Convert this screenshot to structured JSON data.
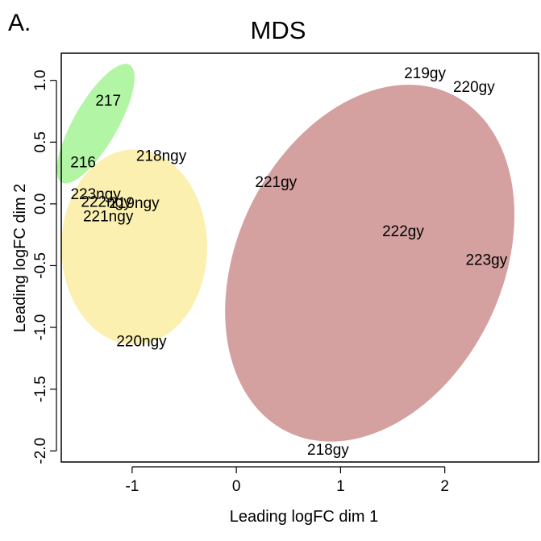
{
  "panel_letter": "A.",
  "chart_data": {
    "type": "scatter",
    "title": "MDS",
    "xlabel": "Leading logFC dim 1",
    "ylabel": "Leading logFC dim 2",
    "xlim": [
      -1.68,
      2.9
    ],
    "ylim": [
      -2.09,
      1.22
    ],
    "xticks": [
      -1,
      0,
      1,
      2
    ],
    "xtick_labels": [
      "-1",
      "0",
      "1",
      "2"
    ],
    "yticks": [
      -2.0,
      -1.5,
      -1.0,
      -0.5,
      0.0,
      0.5,
      1.0
    ],
    "ytick_labels": [
      "-2.0",
      "-1.5",
      "-1.0",
      "-0.5",
      "0.0",
      "0.5",
      "1.0"
    ],
    "grid": false,
    "points": [
      {
        "label": "217",
        "x": -1.23,
        "y": 0.83
      },
      {
        "label": "216",
        "x": -1.47,
        "y": 0.33
      },
      {
        "label": "218ngy",
        "x": -0.72,
        "y": 0.38
      },
      {
        "label": "223ngy",
        "x": -1.35,
        "y": 0.07
      },
      {
        "label": "222ngy",
        "x": -1.25,
        "y": 0.01
      },
      {
        "label": "219ngy",
        "x": -0.98,
        "y": 0.0
      },
      {
        "label": "221ngy",
        "x": -1.23,
        "y": -0.11
      },
      {
        "label": "220ngy",
        "x": -0.91,
        "y": -1.12
      },
      {
        "label": "221gy",
        "x": 0.38,
        "y": 0.17
      },
      {
        "label": "219gy",
        "x": 1.81,
        "y": 1.05
      },
      {
        "label": "220gy",
        "x": 2.28,
        "y": 0.94
      },
      {
        "label": "222gy",
        "x": 1.6,
        "y": -0.23
      },
      {
        "label": "223gy",
        "x": 2.4,
        "y": -0.46
      },
      {
        "label": "218gy",
        "x": 0.88,
        "y": -2.0
      }
    ],
    "groups": [
      {
        "name": "green",
        "color": "#b2f5a5",
        "cx": -1.35,
        "cy": 0.65,
        "rx": 0.21,
        "ry": 0.55,
        "angle": 30
      },
      {
        "name": "yellow",
        "color": "#fbf0b0",
        "cx": -0.98,
        "cy": -0.35,
        "rx": 0.7,
        "ry": 0.79,
        "angle": 0
      },
      {
        "name": "red",
        "color": "#d4a0a0",
        "cx": 1.28,
        "cy": -0.48,
        "rx": 1.27,
        "ry": 1.52,
        "angle": 26
      }
    ]
  }
}
